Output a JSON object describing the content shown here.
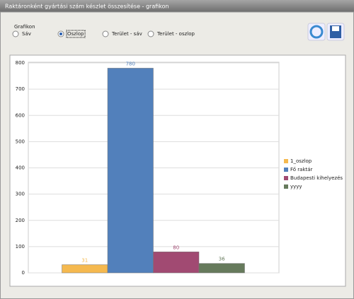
{
  "window": {
    "title": "Raktáronként gyártási szám készlet összesítése - grafikon"
  },
  "group": {
    "label": "Grafikon",
    "options": [
      "Sáv",
      "Oszlop",
      "Terület - sáv",
      "Terület - oszlop"
    ],
    "selected": 1
  },
  "chart_data": {
    "type": "bar",
    "categories": [
      null
    ],
    "series": [
      {
        "name": "1_oszlop",
        "color": "#f5b94f",
        "values": [
          31
        ]
      },
      {
        "name": "Fő raktár",
        "color": "#5280bb",
        "values": [
          780
        ]
      },
      {
        "name": "Budapesti kihelyezés",
        "color": "#a14a72",
        "values": [
          80
        ]
      },
      {
        "name": "yyyy",
        "color": "#667a5c",
        "values": [
          36
        ]
      }
    ],
    "ylim": [
      0,
      800
    ],
    "yticks": [
      0,
      100,
      200,
      300,
      400,
      500,
      600,
      700,
      800
    ],
    "grid": true,
    "legend": "right"
  }
}
